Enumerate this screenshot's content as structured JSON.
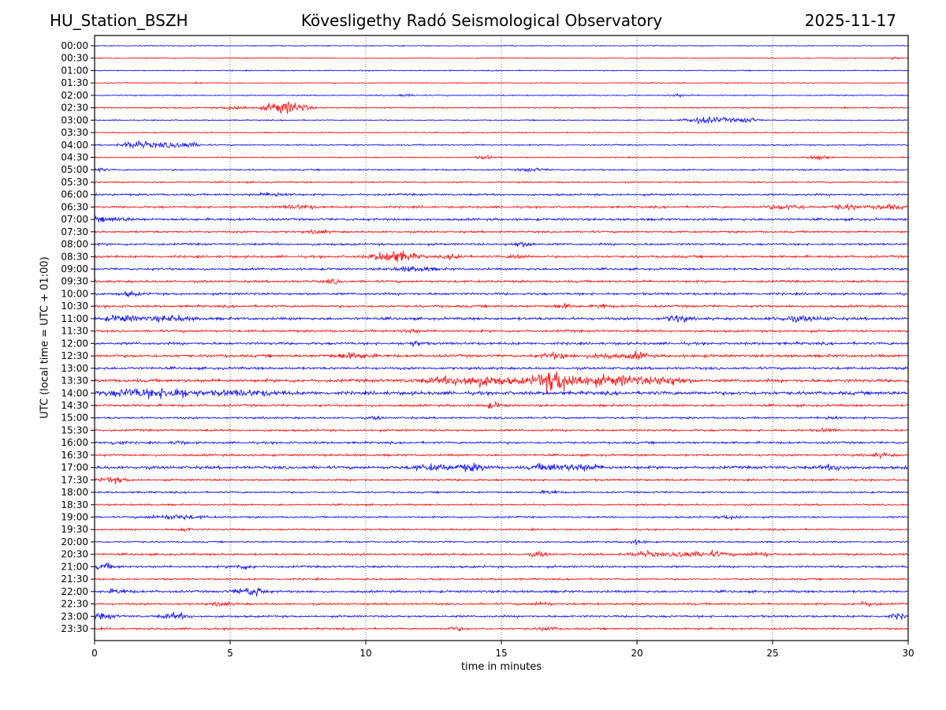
{
  "header": {
    "station": "HU_Station_BSZH",
    "observatory": "Kövesligethy Radó Seismological Observatory",
    "date": "2025-11-17"
  },
  "chart_data": {
    "type": "line",
    "title": "Kövesligethy Radó Seismological Observatory",
    "xlabel": "time in minutes",
    "ylabel": "UTC (local time = UTC + 01:00)",
    "xlim": [
      0,
      30
    ],
    "x_ticks": [
      "0",
      "5",
      "10",
      "15",
      "20",
      "25",
      "30"
    ],
    "x_tick_values": [
      0,
      5,
      10,
      15,
      20,
      25,
      30
    ],
    "grid": "vertical dotted at x ticks",
    "colors": {
      "even_rows": "#0000ff",
      "odd_rows": "#ff0000"
    },
    "rows": [
      {
        "label": "00:00",
        "noise": 0.25,
        "events": []
      },
      {
        "label": "00:30",
        "noise": 0.25,
        "events": [
          {
            "t": 29.5,
            "amp": 0.6,
            "dur": 0.2
          }
        ]
      },
      {
        "label": "01:00",
        "noise": 0.25,
        "events": []
      },
      {
        "label": "01:30",
        "noise": 0.25,
        "events": [
          {
            "t": 3.8,
            "amp": 0.6,
            "dur": 0.1
          }
        ]
      },
      {
        "label": "02:00",
        "noise": 0.3,
        "events": [
          {
            "t": 11.4,
            "amp": 0.6,
            "dur": 0.3
          },
          {
            "t": 21.5,
            "amp": 0.6,
            "dur": 0.3
          }
        ]
      },
      {
        "label": "02:30",
        "noise": 0.35,
        "events": [
          {
            "t": 5.2,
            "amp": 1.0,
            "dur": 0.5
          },
          {
            "t": 6.7,
            "amp": 2.0,
            "dur": 0.5
          },
          {
            "t": 7.3,
            "amp": 2.4,
            "dur": 0.6
          }
        ]
      },
      {
        "label": "03:00",
        "noise": 0.3,
        "events": [
          {
            "t": 22.4,
            "amp": 1.6,
            "dur": 0.6
          },
          {
            "t": 23.4,
            "amp": 0.8,
            "dur": 0.6
          },
          {
            "t": 24.1,
            "amp": 1.3,
            "dur": 0.3
          }
        ]
      },
      {
        "label": "03:30",
        "noise": 0.3,
        "events": []
      },
      {
        "label": "04:00",
        "noise": 0.35,
        "events": [
          {
            "t": 1.5,
            "amp": 1.8,
            "dur": 0.5
          },
          {
            "t": 2.5,
            "amp": 1.0,
            "dur": 0.8
          },
          {
            "t": 3.4,
            "amp": 1.2,
            "dur": 0.5
          }
        ]
      },
      {
        "label": "04:30",
        "noise": 0.3,
        "events": [
          {
            "t": 14.4,
            "amp": 0.8,
            "dur": 0.3
          },
          {
            "t": 26.7,
            "amp": 1.5,
            "dur": 0.3
          }
        ]
      },
      {
        "label": "05:00",
        "noise": 0.4,
        "events": [
          {
            "t": 0.1,
            "amp": 1.0,
            "dur": 0.3
          },
          {
            "t": 16.1,
            "amp": 0.9,
            "dur": 0.4
          }
        ]
      },
      {
        "label": "05:30",
        "noise": 0.4,
        "events": []
      },
      {
        "label": "06:00",
        "noise": 0.5,
        "events": [
          {
            "t": 6.6,
            "amp": 0.9,
            "dur": 0.6
          }
        ]
      },
      {
        "label": "06:30",
        "noise": 0.55,
        "events": [
          {
            "t": 7.5,
            "amp": 0.9,
            "dur": 0.6
          },
          {
            "t": 25.5,
            "amp": 1.0,
            "dur": 0.8
          },
          {
            "t": 27.7,
            "amp": 1.2,
            "dur": 0.5
          },
          {
            "t": 29.2,
            "amp": 1.0,
            "dur": 0.6
          }
        ]
      },
      {
        "label": "07:00",
        "noise": 0.6,
        "events": [
          {
            "t": 0.5,
            "amp": 1.0,
            "dur": 0.8
          }
        ]
      },
      {
        "label": "07:30",
        "noise": 0.55,
        "events": [
          {
            "t": 8.3,
            "amp": 1.0,
            "dur": 0.3
          }
        ]
      },
      {
        "label": "08:00",
        "noise": 0.55,
        "events": [
          {
            "t": 15.8,
            "amp": 1.0,
            "dur": 0.4
          }
        ]
      },
      {
        "label": "08:30",
        "noise": 0.6,
        "events": [
          {
            "t": 10.8,
            "amp": 2.2,
            "dur": 0.6
          },
          {
            "t": 11.4,
            "amp": 1.6,
            "dur": 0.6
          },
          {
            "t": 13.3,
            "amp": 1.5,
            "dur": 0.3
          },
          {
            "t": 15.6,
            "amp": 1.0,
            "dur": 0.3
          }
        ]
      },
      {
        "label": "09:00",
        "noise": 0.55,
        "events": [
          {
            "t": 11.8,
            "amp": 1.2,
            "dur": 0.7
          }
        ]
      },
      {
        "label": "09:30",
        "noise": 0.6,
        "events": [
          {
            "t": 8.8,
            "amp": 1.0,
            "dur": 0.3
          }
        ]
      },
      {
        "label": "10:00",
        "noise": 0.6,
        "events": [
          {
            "t": 1.3,
            "amp": 1.0,
            "dur": 0.3
          }
        ]
      },
      {
        "label": "10:30",
        "noise": 0.6,
        "events": [
          {
            "t": 17.3,
            "amp": 1.0,
            "dur": 0.3
          },
          {
            "t": 18.7,
            "amp": 1.2,
            "dur": 0.2
          }
        ]
      },
      {
        "label": "11:00",
        "noise": 0.7,
        "events": [
          {
            "t": 1.0,
            "amp": 1.6,
            "dur": 0.6
          },
          {
            "t": 2.8,
            "amp": 1.3,
            "dur": 0.8
          },
          {
            "t": 21.5,
            "amp": 1.7,
            "dur": 0.4
          },
          {
            "t": 26.0,
            "amp": 1.0,
            "dur": 1.0
          }
        ]
      },
      {
        "label": "11:30",
        "noise": 0.6,
        "events": [
          {
            "t": 11.7,
            "amp": 0.9,
            "dur": 0.3
          }
        ]
      },
      {
        "label": "12:00",
        "noise": 0.65,
        "events": [
          {
            "t": 11.8,
            "amp": 1.0,
            "dur": 0.3
          }
        ]
      },
      {
        "label": "12:30",
        "noise": 0.7,
        "events": [
          {
            "t": 9.5,
            "amp": 1.2,
            "dur": 0.7
          },
          {
            "t": 17.0,
            "amp": 1.4,
            "dur": 0.5
          },
          {
            "t": 18.8,
            "amp": 1.2,
            "dur": 0.5
          },
          {
            "t": 20.0,
            "amp": 1.6,
            "dur": 0.4
          }
        ]
      },
      {
        "label": "13:00",
        "noise": 0.65,
        "events": []
      },
      {
        "label": "13:30",
        "noise": 0.8,
        "events": [
          {
            "t": 14.0,
            "amp": 2.6,
            "dur": 1.5
          },
          {
            "t": 16.9,
            "amp": 3.6,
            "dur": 0.6
          },
          {
            "t": 17.5,
            "amp": 2.6,
            "dur": 1.2
          },
          {
            "t": 19.5,
            "amp": 2.2,
            "dur": 1.0
          },
          {
            "t": 21.2,
            "amp": 2.2,
            "dur": 0.6
          }
        ]
      },
      {
        "label": "14:00",
        "noise": 0.9,
        "events": [
          {
            "t": 1.5,
            "amp": 1.8,
            "dur": 1.0
          },
          {
            "t": 3.0,
            "amp": 2.0,
            "dur": 0.8
          },
          {
            "t": 5.5,
            "amp": 1.2,
            "dur": 1.2
          }
        ]
      },
      {
        "label": "14:30",
        "noise": 0.6,
        "events": [
          {
            "t": 14.7,
            "amp": 1.4,
            "dur": 0.3
          }
        ]
      },
      {
        "label": "15:00",
        "noise": 0.5,
        "events": [
          {
            "t": 10.4,
            "amp": 0.9,
            "dur": 0.2
          },
          {
            "t": 27.2,
            "amp": 0.9,
            "dur": 0.3
          }
        ]
      },
      {
        "label": "15:30",
        "noise": 0.55,
        "events": [
          {
            "t": 27.0,
            "amp": 0.8,
            "dur": 0.3
          }
        ]
      },
      {
        "label": "16:00",
        "noise": 0.55,
        "events": [
          {
            "t": 0.8,
            "amp": 1.0,
            "dur": 0.3
          },
          {
            "t": 3.1,
            "amp": 1.0,
            "dur": 0.2
          }
        ]
      },
      {
        "label": "16:30",
        "noise": 0.55,
        "events": [
          {
            "t": 29.0,
            "amp": 0.9,
            "dur": 0.4
          }
        ]
      },
      {
        "label": "17:00",
        "noise": 0.75,
        "events": [
          {
            "t": 12.5,
            "amp": 1.3,
            "dur": 0.8
          },
          {
            "t": 13.9,
            "amp": 1.6,
            "dur": 0.5
          },
          {
            "t": 16.6,
            "amp": 1.5,
            "dur": 0.5
          },
          {
            "t": 17.9,
            "amp": 1.5,
            "dur": 0.8
          },
          {
            "t": 27.3,
            "amp": 1.2,
            "dur": 0.5
          }
        ]
      },
      {
        "label": "17:30",
        "noise": 0.55,
        "events": [
          {
            "t": 0.7,
            "amp": 1.3,
            "dur": 0.5
          }
        ]
      },
      {
        "label": "18:00",
        "noise": 0.45,
        "events": [
          {
            "t": 16.8,
            "amp": 0.9,
            "dur": 0.3
          }
        ]
      },
      {
        "label": "18:30",
        "noise": 0.45,
        "events": []
      },
      {
        "label": "19:00",
        "noise": 0.45,
        "events": [
          {
            "t": 3.0,
            "amp": 1.0,
            "dur": 1.0
          },
          {
            "t": 23.5,
            "amp": 0.9,
            "dur": 0.4
          }
        ]
      },
      {
        "label": "19:30",
        "noise": 0.45,
        "events": [
          {
            "t": 3.4,
            "amp": 0.8,
            "dur": 0.3
          }
        ]
      },
      {
        "label": "20:00",
        "noise": 0.4,
        "events": [
          {
            "t": 20.0,
            "amp": 1.0,
            "dur": 0.3
          }
        ]
      },
      {
        "label": "20:30",
        "noise": 0.55,
        "events": [
          {
            "t": 16.4,
            "amp": 1.2,
            "dur": 0.3
          },
          {
            "t": 20.3,
            "amp": 1.2,
            "dur": 0.6
          },
          {
            "t": 21.7,
            "amp": 1.4,
            "dur": 0.4
          },
          {
            "t": 22.7,
            "amp": 1.2,
            "dur": 0.7
          },
          {
            "t": 24.5,
            "amp": 1.1,
            "dur": 0.4
          }
        ]
      },
      {
        "label": "21:00",
        "noise": 0.55,
        "events": [
          {
            "t": 0.4,
            "amp": 1.4,
            "dur": 0.4
          },
          {
            "t": 5.5,
            "amp": 1.0,
            "dur": 0.4
          }
        ]
      },
      {
        "label": "21:30",
        "noise": 0.45,
        "events": []
      },
      {
        "label": "22:00",
        "noise": 0.6,
        "events": [
          {
            "t": 0.9,
            "amp": 1.1,
            "dur": 0.4
          },
          {
            "t": 5.5,
            "amp": 1.4,
            "dur": 0.4
          },
          {
            "t": 6.0,
            "amp": 1.8,
            "dur": 0.3
          }
        ]
      },
      {
        "label": "22:30",
        "noise": 0.55,
        "events": [
          {
            "t": 4.7,
            "amp": 1.0,
            "dur": 0.3
          },
          {
            "t": 16.5,
            "amp": 1.0,
            "dur": 0.3
          },
          {
            "t": 28.5,
            "amp": 1.0,
            "dur": 0.4
          }
        ]
      },
      {
        "label": "23:00",
        "noise": 0.55,
        "events": [
          {
            "t": 0.3,
            "amp": 1.2,
            "dur": 0.5
          },
          {
            "t": 3.0,
            "amp": 1.3,
            "dur": 0.5
          },
          {
            "t": 29.6,
            "amp": 1.2,
            "dur": 0.3
          }
        ]
      },
      {
        "label": "23:30",
        "noise": 0.5,
        "events": [
          {
            "t": 13.3,
            "amp": 0.8,
            "dur": 0.3
          },
          {
            "t": 16.7,
            "amp": 0.9,
            "dur": 0.3
          }
        ]
      }
    ]
  }
}
